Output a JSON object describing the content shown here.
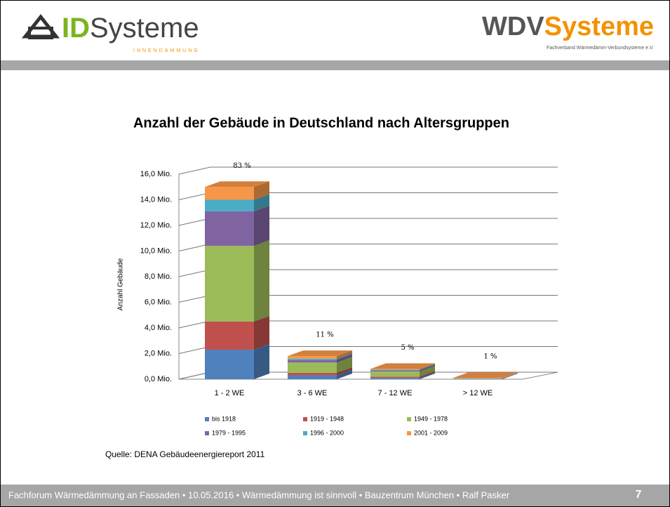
{
  "header": {
    "logo_left": {
      "id": "ID",
      "systeme": "Systeme",
      "tagline": "INNENDÄMMUNG"
    },
    "logo_right": {
      "wdv": "WDV",
      "systeme": "Systeme",
      "tagline": "Fachverband Wärmedämm-Verbundsysteme e.V."
    }
  },
  "chart_data": {
    "type": "stacked-bar-3d",
    "title": "Anzahl der Gebäude in Deutschland nach Altersgruppen",
    "y_label": "Anzahl Gebäude",
    "categories": [
      "1 - 2 WE",
      "3 - 6 WE",
      "7 - 12 WE",
      "> 12 WE"
    ],
    "annotations": [
      "83 %",
      "11 %",
      "5 %",
      "1 %"
    ],
    "series": [
      {
        "name": "bis 1918",
        "color": "#4f81bd",
        "values": [
          2.3,
          0.3,
          0.1,
          0.02
        ]
      },
      {
        "name": "1919 - 1948",
        "color": "#c0504d",
        "values": [
          2.2,
          0.2,
          0.1,
          0.02
        ]
      },
      {
        "name": "1949 - 1978",
        "color": "#9bbb59",
        "values": [
          5.9,
          0.8,
          0.4,
          0.03
        ]
      },
      {
        "name": "1979 - 1995",
        "color": "#8064a2",
        "values": [
          2.7,
          0.2,
          0.1,
          0.01
        ]
      },
      {
        "name": "1996 - 2000",
        "color": "#4bacc6",
        "values": [
          0.9,
          0.1,
          0.05,
          0.01
        ]
      },
      {
        "name": "2001 - 2009",
        "color": "#f79646",
        "values": [
          1.0,
          0.2,
          0.05,
          0.01
        ]
      }
    ],
    "ylim": [
      0,
      16
    ],
    "yticks": [
      {
        "value": 0,
        "label": "0,0 Mio."
      },
      {
        "value": 2,
        "label": "2,0 Mio."
      },
      {
        "value": 4,
        "label": "4,0 Mio."
      },
      {
        "value": 6,
        "label": "6,0 Mio."
      },
      {
        "value": 8,
        "label": "8,0 Mio."
      },
      {
        "value": 10,
        "label": "10,0 Mio."
      },
      {
        "value": 12,
        "label": "12,0 Mio."
      },
      {
        "value": 14,
        "label": "14,0 Mio."
      },
      {
        "value": 16,
        "label": "16,0 Mio."
      }
    ],
    "grid": true,
    "source": "Quelle: DENA Gebäudeenergiereport 2011"
  },
  "footer": {
    "text": "Fachforum Wärmedämmung an Fassaden • 10.05.2016 • Wärmedämmung ist sinnvoll • Bauzentrum München • Ralf Pasker",
    "page": "7"
  }
}
